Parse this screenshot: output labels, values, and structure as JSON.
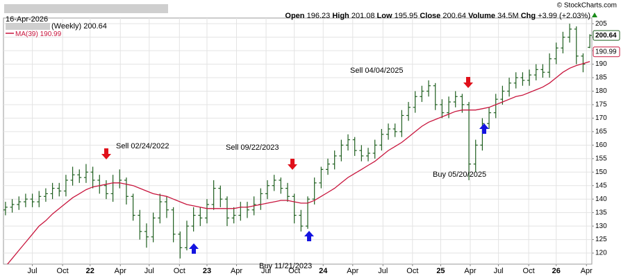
{
  "chart_data": {
    "type": "ohlc",
    "header": {
      "date": "16-Apr-2026",
      "open_label": "Open",
      "high_label": "High",
      "low_label": "Low",
      "close_label": "Close",
      "volume_label": "Volume",
      "volume": "34.5M",
      "chg_label": "Chg",
      "chg": "+3.99 (+2.03%)",
      "copyright": "© StockCharts.com"
    },
    "price_label": "(Weekly)",
    "price_color": "#1e5e1e",
    "open": [
      136,
      137,
      138,
      139,
      140,
      139,
      141,
      142,
      144,
      143,
      147,
      149,
      148,
      150,
      147,
      145,
      142,
      146,
      147,
      141,
      134,
      128,
      126,
      133,
      139,
      136,
      127,
      122,
      130,
      134,
      133,
      138,
      144,
      140,
      133,
      134,
      137,
      136,
      138,
      142,
      145,
      147,
      144,
      141,
      134,
      130,
      140,
      146,
      151,
      153,
      156,
      160,
      162,
      158,
      156,
      157,
      160,
      164,
      166,
      165,
      171,
      174,
      178,
      180,
      182,
      175,
      172,
      176,
      178,
      175,
      153,
      160,
      168,
      172,
      177,
      180,
      183,
      185,
      184,
      186,
      188,
      187,
      192,
      196,
      200,
      203,
      193,
      196.23
    ],
    "high": [
      139,
      140,
      141,
      142,
      142,
      143,
      144,
      146,
      146,
      149,
      152,
      151,
      153,
      152,
      149,
      147,
      149,
      151,
      148,
      142,
      136,
      131,
      135,
      142,
      141,
      137,
      128,
      132,
      137,
      137,
      140,
      147,
      145,
      141,
      137,
      139,
      139,
      141,
      144,
      147,
      149,
      148,
      146,
      142,
      136,
      141,
      148,
      152,
      155,
      158,
      162,
      164,
      163,
      160,
      159,
      162,
      166,
      168,
      168,
      173,
      176,
      180,
      182,
      184,
      183,
      177,
      178,
      180,
      179,
      176,
      162,
      170,
      174,
      179,
      182,
      185,
      187,
      187,
      188,
      190,
      190,
      194,
      198,
      202,
      205,
      204,
      194,
      201.08
    ],
    "low": [
      134,
      135,
      136,
      137,
      137,
      137,
      139,
      140,
      141,
      141,
      145,
      146,
      146,
      144,
      142,
      140,
      139,
      144,
      138,
      132,
      125,
      122,
      124,
      131,
      133,
      124,
      118,
      121,
      128,
      130,
      131,
      136,
      137,
      130,
      131,
      132,
      133,
      134,
      136,
      140,
      143,
      142,
      139,
      131,
      128,
      129,
      138,
      144,
      149,
      151,
      154,
      158,
      156,
      154,
      154,
      155,
      158,
      162,
      163,
      163,
      169,
      172,
      176,
      178,
      173,
      170,
      170,
      174,
      172,
      147,
      150,
      158,
      166,
      170,
      175,
      178,
      181,
      182,
      182,
      184,
      185,
      185,
      190,
      194,
      198,
      190,
      187,
      195.95
    ],
    "close": [
      137,
      138,
      139,
      140,
      139,
      141,
      142,
      144,
      143,
      147,
      149,
      148,
      150,
      147,
      145,
      142,
      146,
      147,
      141,
      134,
      128,
      126,
      133,
      139,
      136,
      127,
      122,
      130,
      134,
      133,
      138,
      144,
      140,
      133,
      134,
      137,
      136,
      138,
      142,
      145,
      147,
      144,
      141,
      134,
      130,
      140,
      146,
      151,
      153,
      156,
      160,
      162,
      158,
      156,
      157,
      160,
      164,
      166,
      165,
      171,
      174,
      178,
      180,
      182,
      175,
      172,
      176,
      178,
      175,
      153,
      160,
      168,
      172,
      177,
      180,
      183,
      185,
      184,
      186,
      188,
      187,
      192,
      196,
      200,
      203,
      193,
      190,
      200.64
    ],
    "ma": {
      "name": "MA(39)",
      "color": "#c8143c",
      "values": [
        115,
        118,
        121,
        124,
        127,
        130,
        132,
        134.5,
        136.5,
        138.5,
        140.5,
        142,
        143.5,
        144.5,
        145,
        145.5,
        146,
        146,
        145.5,
        145,
        144,
        143,
        142,
        141.5,
        141,
        140,
        139,
        138,
        137.5,
        137,
        136.5,
        136.5,
        136.5,
        136.5,
        136.5,
        137,
        137,
        137.5,
        138,
        138.5,
        139,
        139.5,
        139.5,
        139,
        138.5,
        138.5,
        139.5,
        141,
        142.5,
        144,
        146,
        148,
        149.5,
        151,
        152.5,
        154,
        156,
        158,
        159.5,
        161,
        163,
        165,
        167,
        168.5,
        169.5,
        170.5,
        171.5,
        172.5,
        173,
        173,
        173,
        173.5,
        174,
        175,
        176,
        177,
        178,
        178.5,
        179.5,
        180.5,
        181.5,
        183,
        185,
        187,
        188.5,
        189.5,
        190.2,
        190.99
      ]
    },
    "ylim": [
      115.9,
      207.1
    ],
    "yticks": [
      120,
      125,
      130,
      135,
      140,
      145,
      150,
      155,
      160,
      165,
      170,
      175,
      180,
      185,
      190,
      195,
      200,
      205
    ],
    "xlim": [
      -0.3,
      87.3
    ],
    "xticks": [
      {
        "value": 4.0,
        "label": "Jul"
      },
      {
        "value": 8.5,
        "label": "Oct"
      },
      {
        "value": 12.6,
        "label": "22"
      },
      {
        "value": 17.1,
        "label": "Apr"
      },
      {
        "value": 21.4,
        "label": "Jul"
      },
      {
        "value": 25.9,
        "label": "Oct"
      },
      {
        "value": 30.0,
        "label": "23"
      },
      {
        "value": 34.4,
        "label": "Apr"
      },
      {
        "value": 38.8,
        "label": "Jul"
      },
      {
        "value": 43.0,
        "label": "Oct"
      },
      {
        "value": 47.3,
        "label": "24"
      },
      {
        "value": 51.7,
        "label": "Apr"
      },
      {
        "value": 56.2,
        "label": "Jul"
      },
      {
        "value": 60.6,
        "label": "Oct"
      },
      {
        "value": 64.8,
        "label": "25"
      },
      {
        "value": 69.2,
        "label": "Apr"
      },
      {
        "value": 73.4,
        "label": "Jul"
      },
      {
        "value": 77.9,
        "label": "Oct"
      },
      {
        "value": 82.0,
        "label": "26"
      },
      {
        "value": 86.5,
        "label": "Apr"
      }
    ],
    "grid": true,
    "annotations": [
      "Sell 02/24/2022",
      "Sell 09/22/2023",
      "Sell 04/04/2025",
      "Buy 11/21/2023",
      "Buy 05/20/2025"
    ]
  }
}
